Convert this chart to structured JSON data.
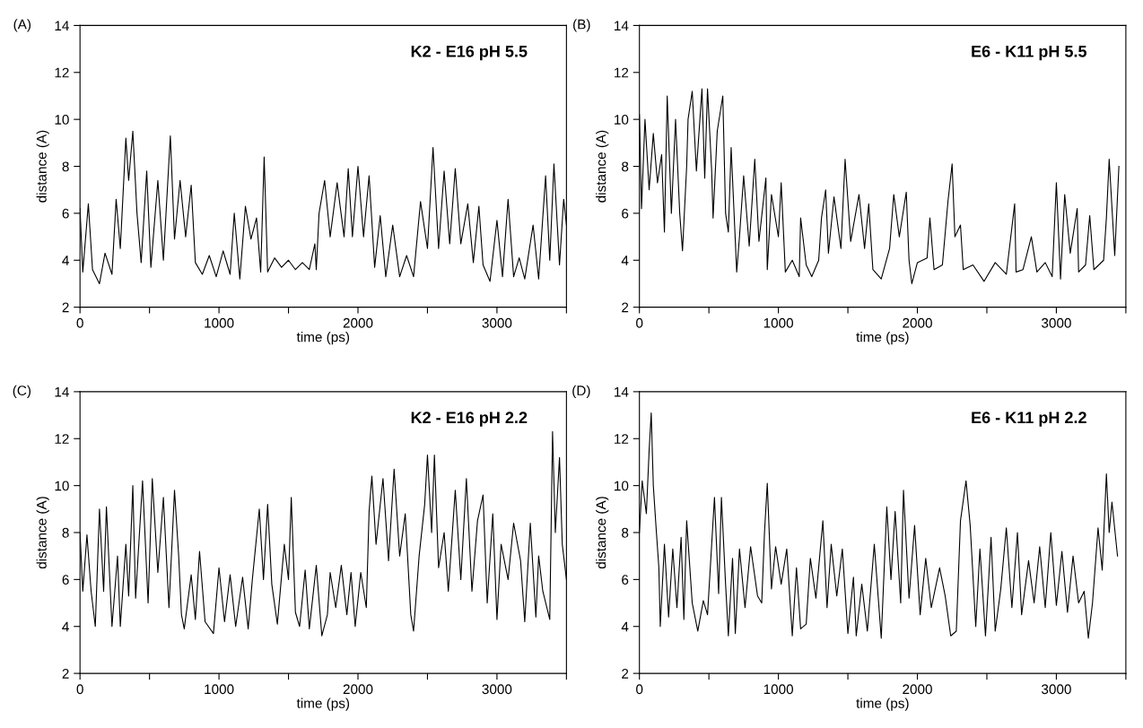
{
  "chart_data": [
    {
      "type": "line",
      "title": "K2 - E16 pH 5.5",
      "xlabel": "time (ps)",
      "ylabel": "distance (A)",
      "annotations": [
        "(A)"
      ],
      "xlim": [
        0,
        3500
      ],
      "ylim": [
        2,
        14
      ],
      "xticks": [
        0,
        {
          "value": 500,
          "label": null
        },
        1000,
        {
          "value": 1500,
          "label": null
        },
        2000,
        {
          "value": 2500,
          "label": null
        },
        3000,
        {
          "value": 3500,
          "label": null
        }
      ],
      "yticks": [
        2,
        4,
        6,
        8,
        10,
        12,
        14
      ],
      "grid": false,
      "marker": "none",
      "line_style": "solid",
      "series": [
        {
          "color": "#000000",
          "x": [
            0,
            20,
            60,
            90,
            140,
            180,
            230,
            260,
            290,
            330,
            350,
            380,
            410,
            440,
            480,
            510,
            560,
            600,
            650,
            680,
            720,
            760,
            800,
            830,
            880,
            930,
            980,
            1030,
            1080,
            1110,
            1150,
            1190,
            1230,
            1270,
            1300,
            1325,
            1350,
            1400,
            1450,
            1500,
            1550,
            1600,
            1650,
            1690,
            1700,
            1720,
            1760,
            1800,
            1850,
            1900,
            1930,
            1960,
            2000,
            2040,
            2080,
            2120,
            2160,
            2200,
            2250,
            2300,
            2350,
            2400,
            2450,
            2500,
            2540,
            2580,
            2620,
            2660,
            2700,
            2740,
            2790,
            2830,
            2870,
            2900,
            2950,
            3000,
            3040,
            3080,
            3120,
            3160,
            3200,
            3260,
            3300,
            3350,
            3380,
            3410,
            3450,
            3480,
            3500
          ],
          "values": [
            6.2,
            3.5,
            6.4,
            3.6,
            3.0,
            4.3,
            3.4,
            6.6,
            4.5,
            9.2,
            7.4,
            9.5,
            6.0,
            3.9,
            7.8,
            3.7,
            7.4,
            4.0,
            9.3,
            4.9,
            7.4,
            5.0,
            7.2,
            3.9,
            3.4,
            4.2,
            3.3,
            4.4,
            3.4,
            6.0,
            3.2,
            6.3,
            4.9,
            5.8,
            3.5,
            8.4,
            3.5,
            4.1,
            3.7,
            4.0,
            3.6,
            3.9,
            3.6,
            4.7,
            3.6,
            6.0,
            7.4,
            5.0,
            7.3,
            5.0,
            7.9,
            5.0,
            8.0,
            5.0,
            7.6,
            3.7,
            5.9,
            3.3,
            5.5,
            3.3,
            4.2,
            3.3,
            6.5,
            4.5,
            8.8,
            4.5,
            7.8,
            4.7,
            7.9,
            4.7,
            6.4,
            3.9,
            6.3,
            3.8,
            3.1,
            5.7,
            3.3,
            6.6,
            3.3,
            4.1,
            3.2,
            5.5,
            3.2,
            7.6,
            4.0,
            8.1,
            3.8,
            6.6,
            5.5
          ]
        }
      ]
    },
    {
      "type": "line",
      "title": "E6 - K11 pH 5.5",
      "xlabel": "time (ps)",
      "ylabel": "distance (A)",
      "annotations": [
        "(B)"
      ],
      "xlim": [
        0,
        3500
      ],
      "ylim": [
        2,
        14
      ],
      "xticks": [
        0,
        {
          "value": 500,
          "label": null
        },
        1000,
        {
          "value": 1500,
          "label": null
        },
        2000,
        {
          "value": 2500,
          "label": null
        },
        3000,
        {
          "value": 3500,
          "label": null
        }
      ],
      "yticks": [
        2,
        4,
        6,
        8,
        10,
        12,
        14
      ],
      "grid": false,
      "marker": "none",
      "line_style": "solid",
      "series": [
        {
          "color": "#000000",
          "x": [
            0,
            15,
            40,
            70,
            100,
            130,
            160,
            180,
            200,
            230,
            260,
            290,
            310,
            340,
            350,
            380,
            410,
            450,
            470,
            490,
            520,
            530,
            560,
            600,
            620,
            640,
            660,
            700,
            720,
            750,
            790,
            830,
            860,
            910,
            920,
            950,
            1000,
            1020,
            1050,
            1100,
            1150,
            1160,
            1200,
            1240,
            1290,
            1310,
            1340,
            1360,
            1400,
            1450,
            1480,
            1520,
            1580,
            1620,
            1650,
            1680,
            1740,
            1800,
            1830,
            1870,
            1920,
            1940,
            1960,
            2000,
            2070,
            2090,
            2120,
            2180,
            2220,
            2250,
            2270,
            2310,
            2330,
            2400,
            2480,
            2560,
            2640,
            2700,
            2710,
            2760,
            2820,
            2860,
            2920,
            2970,
            3000,
            3030,
            3060,
            3100,
            3150,
            3160,
            3210,
            3240,
            3270,
            3340,
            3360,
            3380,
            3420,
            3450
          ],
          "values": [
            10.2,
            6.2,
            10.0,
            7.0,
            9.4,
            7.3,
            8.5,
            5.2,
            11.0,
            6.0,
            10.0,
            6.0,
            4.4,
            8.0,
            10.0,
            11.2,
            7.8,
            11.3,
            7.5,
            11.3,
            7.8,
            5.8,
            9.5,
            11.0,
            6.0,
            5.2,
            8.8,
            3.5,
            5.0,
            7.6,
            4.6,
            8.3,
            4.8,
            7.5,
            3.6,
            6.8,
            5.0,
            7.3,
            3.5,
            4.0,
            3.3,
            5.8,
            3.8,
            3.3,
            4.0,
            5.8,
            7.0,
            4.3,
            6.7,
            4.5,
            8.3,
            4.8,
            6.8,
            4.5,
            6.4,
            3.6,
            3.2,
            4.5,
            6.8,
            5.0,
            6.9,
            4.0,
            3.0,
            3.9,
            4.1,
            5.8,
            3.6,
            3.8,
            6.5,
            8.1,
            5.0,
            5.5,
            3.6,
            3.8,
            3.1,
            3.9,
            3.4,
            6.4,
            3.5,
            3.6,
            5.0,
            3.5,
            3.9,
            3.3,
            7.3,
            3.2,
            6.8,
            4.3,
            6.2,
            3.5,
            3.8,
            5.9,
            3.6,
            4.0,
            5.8,
            8.3,
            4.2,
            8.0
          ]
        }
      ]
    },
    {
      "type": "line",
      "title": "K2 - E16 pH 2.2",
      "xlabel": "time (ps)",
      "ylabel": "distance (A)",
      "annotations": [
        "(C)"
      ],
      "xlim": [
        0,
        3500
      ],
      "ylim": [
        2,
        14
      ],
      "xticks": [
        0,
        {
          "value": 500,
          "label": null
        },
        1000,
        {
          "value": 1500,
          "label": null
        },
        2000,
        {
          "value": 2500,
          "label": null
        },
        3000,
        {
          "value": 3500,
          "label": null
        }
      ],
      "yticks": [
        2,
        4,
        6,
        8,
        10,
        12,
        14
      ],
      "grid": false,
      "marker": "none",
      "line_style": "solid",
      "series": [
        {
          "color": "#000000",
          "x": [
            0,
            20,
            50,
            80,
            110,
            140,
            170,
            190,
            230,
            270,
            290,
            330,
            350,
            380,
            400,
            450,
            490,
            520,
            560,
            600,
            640,
            680,
            710,
            730,
            750,
            800,
            830,
            860,
            900,
            960,
            1000,
            1040,
            1080,
            1120,
            1170,
            1210,
            1240,
            1290,
            1320,
            1350,
            1380,
            1420,
            1470,
            1500,
            1520,
            1550,
            1580,
            1620,
            1650,
            1700,
            1740,
            1780,
            1800,
            1840,
            1880,
            1920,
            1950,
            1980,
            2020,
            2060,
            2080,
            2100,
            2130,
            2180,
            2220,
            2260,
            2300,
            2340,
            2380,
            2400,
            2440,
            2480,
            2500,
            2530,
            2550,
            2580,
            2620,
            2650,
            2700,
            2740,
            2780,
            2820,
            2860,
            2900,
            2930,
            2970,
            3000,
            3030,
            3080,
            3120,
            3170,
            3200,
            3240,
            3280,
            3300,
            3330,
            3380,
            3400,
            3420,
            3450,
            3470,
            3500
          ],
          "values": [
            8.0,
            5.5,
            7.9,
            5.5,
            4.0,
            9.0,
            5.5,
            9.1,
            4.0,
            7.0,
            4.0,
            7.5,
            5.3,
            10.0,
            5.2,
            10.2,
            5.0,
            10.3,
            6.3,
            9.5,
            4.8,
            9.8,
            7.0,
            4.5,
            3.9,
            6.2,
            4.3,
            7.2,
            4.2,
            3.7,
            6.5,
            4.2,
            6.2,
            4.0,
            6.1,
            3.9,
            6.0,
            9.0,
            6.0,
            9.2,
            5.8,
            4.1,
            7.5,
            6.0,
            9.5,
            4.6,
            4.0,
            6.4,
            3.9,
            6.6,
            3.6,
            4.5,
            6.3,
            4.8,
            6.6,
            4.5,
            6.3,
            4.0,
            6.3,
            4.8,
            8.9,
            10.4,
            7.5,
            10.3,
            6.8,
            10.7,
            7.0,
            8.8,
            4.5,
            3.8,
            7.0,
            9.2,
            11.3,
            8.0,
            11.3,
            6.5,
            8.0,
            5.5,
            9.8,
            6.0,
            10.3,
            5.5,
            8.5,
            9.6,
            5.0,
            8.8,
            4.3,
            7.5,
            6.0,
            8.4,
            6.8,
            4.2,
            8.4,
            4.4,
            7.0,
            5.5,
            4.3,
            12.3,
            8.0,
            11.2,
            7.5,
            6.0
          ]
        }
      ]
    },
    {
      "type": "line",
      "title": "E6 - K11 pH 2.2",
      "xlabel": "time (ps)",
      "ylabel": "distance (A)",
      "annotations": [
        "(D)"
      ],
      "xlim": [
        0,
        3500
      ],
      "ylim": [
        2,
        14
      ],
      "xticks": [
        0,
        {
          "value": 500,
          "label": null
        },
        1000,
        {
          "value": 1500,
          "label": null
        },
        2000,
        {
          "value": 2500,
          "label": null
        },
        3000,
        {
          "value": 3500,
          "label": null
        }
      ],
      "yticks": [
        2,
        4,
        6,
        8,
        10,
        12,
        14
      ],
      "grid": false,
      "marker": "none",
      "line_style": "solid",
      "series": [
        {
          "color": "#000000",
          "x": [
            0,
            20,
            50,
            70,
            85,
            100,
            120,
            140,
            150,
            180,
            210,
            240,
            270,
            300,
            320,
            340,
            380,
            420,
            460,
            490,
            540,
            570,
            590,
            620,
            640,
            670,
            690,
            720,
            760,
            800,
            850,
            880,
            900,
            920,
            950,
            980,
            1020,
            1060,
            1100,
            1130,
            1160,
            1200,
            1230,
            1270,
            1320,
            1350,
            1380,
            1420,
            1460,
            1500,
            1540,
            1560,
            1600,
            1640,
            1690,
            1740,
            1780,
            1810,
            1840,
            1880,
            1900,
            1940,
            1980,
            2020,
            2060,
            2100,
            2160,
            2200,
            2240,
            2280,
            2310,
            2350,
            2380,
            2420,
            2450,
            2490,
            2530,
            2560,
            2600,
            2640,
            2680,
            2720,
            2750,
            2800,
            2840,
            2880,
            2920,
            2960,
            3000,
            3040,
            3080,
            3120,
            3160,
            3200,
            3230,
            3260,
            3300,
            3330,
            3360,
            3380,
            3400,
            3440
          ],
          "values": [
            8.0,
            10.2,
            8.8,
            11.5,
            13.1,
            10.0,
            8.2,
            6.5,
            4.0,
            7.5,
            4.4,
            7.3,
            4.8,
            7.8,
            4.3,
            8.5,
            5.0,
            3.8,
            5.1,
            4.5,
            9.5,
            5.4,
            9.5,
            5.8,
            3.6,
            6.9,
            3.7,
            7.3,
            4.8,
            7.4,
            5.3,
            5.0,
            8.0,
            10.1,
            5.6,
            7.4,
            5.8,
            7.3,
            3.6,
            6.5,
            3.9,
            4.1,
            6.9,
            5.2,
            8.5,
            4.8,
            7.5,
            5.3,
            7.3,
            3.7,
            6.1,
            3.6,
            5.8,
            3.8,
            7.5,
            3.5,
            9.1,
            6.0,
            8.9,
            5.0,
            9.8,
            5.2,
            8.3,
            4.5,
            6.9,
            4.8,
            6.5,
            5.3,
            3.6,
            3.8,
            8.5,
            10.2,
            8.3,
            4.0,
            7.3,
            3.6,
            7.8,
            3.8,
            5.6,
            8.2,
            4.8,
            8.0,
            4.5,
            6.8,
            5.0,
            7.4,
            4.8,
            8.0,
            4.9,
            7.2,
            4.6,
            7.0,
            5.0,
            5.5,
            3.5,
            5.0,
            8.2,
            6.4,
            10.5,
            8.0,
            9.3,
            7.0
          ]
        }
      ]
    }
  ]
}
